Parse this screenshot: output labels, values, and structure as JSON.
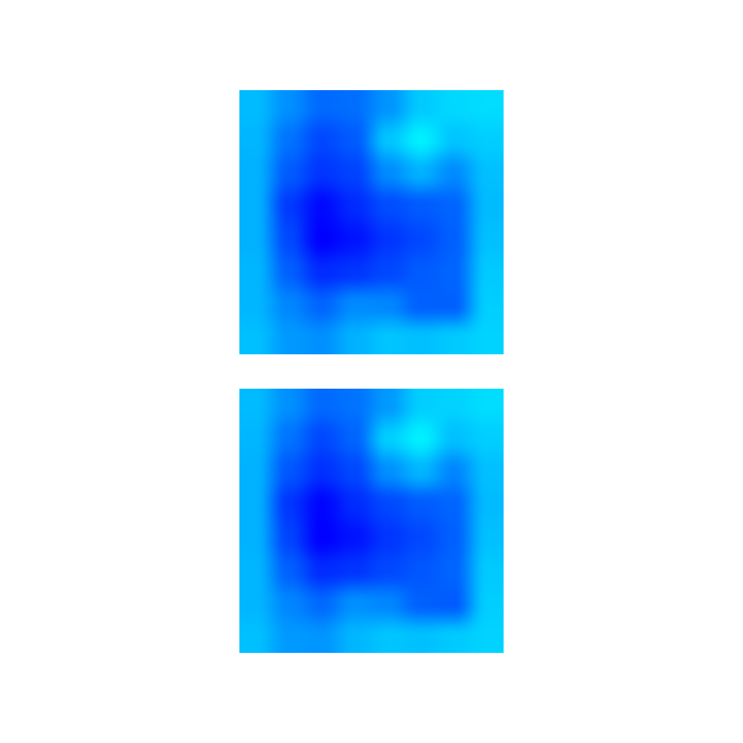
{
  "colors": {
    "background": "#ffffff",
    "colormap": [
      "#0000ff",
      "#0050ff",
      "#00a0ff",
      "#00f0ff"
    ]
  },
  "chart_data": [
    {
      "type": "heatmap",
      "colormap": "blue-cyan",
      "rows": 8,
      "cols": 8,
      "vmin": 0,
      "vmax": 1,
      "values": [
        [
          0.78,
          0.6,
          0.44,
          0.46,
          0.62,
          0.84,
          0.9,
          0.92
        ],
        [
          0.76,
          0.48,
          0.3,
          0.38,
          0.82,
          1.0,
          0.82,
          0.86
        ],
        [
          0.74,
          0.38,
          0.22,
          0.28,
          0.58,
          0.74,
          0.58,
          0.8
        ],
        [
          0.74,
          0.24,
          0.04,
          0.18,
          0.32,
          0.38,
          0.42,
          0.78
        ],
        [
          0.74,
          0.3,
          0.0,
          0.08,
          0.22,
          0.3,
          0.4,
          0.8
        ],
        [
          0.76,
          0.4,
          0.18,
          0.22,
          0.3,
          0.38,
          0.42,
          0.84
        ],
        [
          0.76,
          0.56,
          0.42,
          0.58,
          0.56,
          0.4,
          0.4,
          0.86
        ],
        [
          0.8,
          0.64,
          0.6,
          0.74,
          0.82,
          0.8,
          0.84,
          0.88
        ]
      ]
    },
    {
      "type": "heatmap",
      "colormap": "blue-cyan",
      "rows": 8,
      "cols": 8,
      "vmin": 0,
      "vmax": 1,
      "values": [
        [
          0.78,
          0.6,
          0.44,
          0.48,
          0.64,
          0.86,
          0.88,
          0.92
        ],
        [
          0.76,
          0.48,
          0.3,
          0.42,
          0.86,
          1.0,
          0.8,
          0.86
        ],
        [
          0.74,
          0.36,
          0.2,
          0.3,
          0.6,
          0.76,
          0.56,
          0.8
        ],
        [
          0.74,
          0.22,
          0.02,
          0.18,
          0.3,
          0.38,
          0.42,
          0.78
        ],
        [
          0.74,
          0.28,
          0.0,
          0.08,
          0.22,
          0.3,
          0.4,
          0.8
        ],
        [
          0.76,
          0.4,
          0.18,
          0.22,
          0.3,
          0.36,
          0.42,
          0.84
        ],
        [
          0.76,
          0.56,
          0.44,
          0.6,
          0.56,
          0.4,
          0.38,
          0.86
        ],
        [
          0.8,
          0.64,
          0.62,
          0.76,
          0.82,
          0.8,
          0.84,
          0.88
        ]
      ]
    }
  ]
}
